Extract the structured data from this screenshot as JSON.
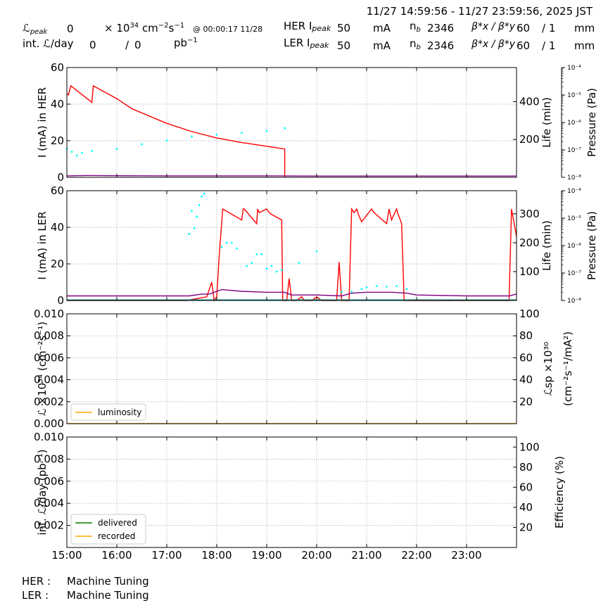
{
  "header": {
    "time_range": "11/27 14:59:56 - 11/27 23:59:56, 2025 JST",
    "lpeak_label": "ℒ",
    "lpeak_sub": "peak",
    "lpeak_value": "0",
    "lpeak_unit_pre": "× 10",
    "lpeak_unit_exp": "34",
    "lpeak_unit_rest": " cm",
    "lpeak_unit_exp2": "−2",
    "lpeak_unit_s": "s",
    "lpeak_unit_exp3": "−1",
    "lpeak_time": "@ 00:00:17 11/28",
    "intl_label": "int. ℒ/day",
    "intl_value": "0",
    "intl_sep": "/",
    "intl_value2": "0",
    "intl_unit": "pb",
    "intl_unit_exp": "−1",
    "her_label": "HER I",
    "her_sub": "peak",
    "her_value": "50",
    "ler_label": "LER I",
    "ler_sub": "peak",
    "ler_value": "50",
    "ma_unit": "mA",
    "nb_label": "n",
    "nb_sub": "b",
    "her_nb": "2346",
    "ler_nb": "2346",
    "beta_label": "β*x / β*y",
    "her_bx": "60",
    "her_by": "/ 1",
    "ler_bx": "60",
    "ler_by": "/ 1",
    "beta_unit": "mm"
  },
  "chart_data": [
    {
      "type": "line",
      "name": "her-panel",
      "ylabel": "I (mA) in HER",
      "ylim": [
        0,
        60
      ],
      "yticks": [
        "0",
        "20",
        "40",
        "60"
      ],
      "right_label": "Life (min)",
      "right_ticks": [
        "200",
        "400"
      ],
      "right_lim": [
        0,
        580
      ],
      "pressure_label": "Pressure (Pa)",
      "pressure_ticks": [
        "10⁻⁴",
        "10⁻⁵",
        "10⁻⁶",
        "10⁻⁷",
        "10⁻⁸"
      ],
      "grid": true,
      "series": [
        {
          "color": "#ff0000",
          "axis": "left",
          "x": [
            15.0,
            15.03,
            15.08,
            15.5,
            15.53,
            16.0,
            16.3,
            17.0,
            17.5,
            18.0,
            18.5,
            19.0,
            19.36,
            19.36
          ],
          "y": [
            46,
            45,
            50,
            41,
            50,
            43,
            37.5,
            29.5,
            25,
            21.5,
            19,
            17,
            15.5,
            0
          ]
        },
        {
          "color": "#800080",
          "axis": "left",
          "x": [
            15.0,
            15.4,
            16.0,
            17.0,
            18.0,
            19.0,
            20.0,
            21.0,
            22.0,
            23.0,
            24.0
          ],
          "y": [
            0.8,
            1.0,
            0.9,
            0.8,
            0.8,
            0.8,
            0.7,
            0.7,
            0.7,
            0.7,
            0.7
          ]
        },
        {
          "color": "#00ffff",
          "axis": "right",
          "style": "scatter",
          "x": [
            15.0,
            15.1,
            15.2,
            15.3,
            15.5,
            16.0,
            16.5,
            17.0,
            17.5,
            18.0,
            18.5,
            19.0,
            19.36
          ],
          "y": [
            150,
            135,
            115,
            130,
            140,
            150,
            175,
            195,
            215,
            225,
            235,
            245,
            260
          ]
        }
      ]
    },
    {
      "type": "line",
      "name": "ler-panel",
      "ylabel": "I (mA) in LER",
      "ylim": [
        0,
        60
      ],
      "yticks": [
        "0",
        "20",
        "40",
        "60"
      ],
      "right_label": "Life (min)",
      "right_ticks": [
        "100",
        "200",
        "300"
      ],
      "right_lim": [
        0,
        380
      ],
      "pressure_label": "Pressure (Pa)",
      "pressure_ticks": [
        "10⁻⁴",
        "10⁻⁵",
        "10⁻⁶",
        "10⁻⁷",
        "10⁻⁸"
      ],
      "grid": true,
      "series": [
        {
          "color": "#ff0000",
          "axis": "left",
          "x": [
            15.0,
            17.4,
            17.8,
            17.9,
            17.95,
            18.0,
            18.05,
            18.12,
            18.5,
            18.53,
            18.55,
            18.8,
            18.82,
            18.85,
            19.0,
            19.05,
            19.1,
            19.3,
            19.32,
            19.4,
            19.45,
            19.5,
            19.6,
            19.7,
            19.75,
            19.9,
            20.0,
            20.1,
            20.4,
            20.45,
            20.5,
            20.65,
            20.7,
            20.75,
            20.8,
            20.85,
            20.9,
            21.1,
            21.15,
            21.4,
            21.45,
            21.5,
            21.6,
            21.62,
            21.7,
            21.75,
            21.8,
            21.85,
            22.0,
            23.85,
            23.9,
            24.0
          ],
          "y": [
            0,
            0,
            2,
            10,
            0,
            2,
            25,
            50,
            44,
            50,
            50,
            42,
            50,
            48,
            50,
            48,
            47,
            44,
            0,
            0,
            12,
            0,
            0,
            2,
            0,
            0,
            2,
            0,
            0,
            21,
            0,
            0,
            50,
            48,
            50,
            46,
            43,
            50,
            48,
            42,
            50,
            44,
            50,
            48,
            42,
            0,
            0,
            0,
            0,
            0,
            50,
            35
          ]
        },
        {
          "color": "#800080",
          "axis": "left",
          "x": [
            15.0,
            17.45,
            17.7,
            17.85,
            18.1,
            18.5,
            19.0,
            19.35,
            19.5,
            20.0,
            20.5,
            20.7,
            21.0,
            21.5,
            21.8,
            22.0,
            23.0,
            23.85,
            24.0
          ],
          "y": [
            2.5,
            2.5,
            3.5,
            3.5,
            6,
            5,
            4.5,
            4.5,
            3,
            3,
            2.5,
            4,
            4.5,
            4.5,
            4,
            3,
            2.5,
            2.5,
            3.5
          ]
        },
        {
          "color": "#00ffff",
          "axis": "right",
          "style": "scatter",
          "x": [
            17.45,
            17.5,
            17.55,
            17.6,
            17.65,
            17.7,
            17.75,
            18.1,
            18.2,
            18.3,
            18.4,
            18.6,
            18.7,
            18.8,
            18.9,
            19.0,
            19.1,
            19.2,
            19.3,
            19.65,
            20.0,
            20.5,
            20.7,
            20.9,
            21.0,
            21.2,
            21.4,
            21.6,
            21.8
          ],
          "y": [
            230,
            310,
            250,
            290,
            330,
            360,
            370,
            185,
            200,
            200,
            180,
            120,
            130,
            160,
            160,
            110,
            120,
            100,
            105,
            130,
            170,
            30,
            30,
            40,
            45,
            50,
            48,
            50,
            40
          ]
        },
        {
          "color": "#008080",
          "axis": "left",
          "x": [
            15.0,
            24.0
          ],
          "y": [
            0.3,
            0.3
          ]
        }
      ]
    },
    {
      "type": "line",
      "name": "lumi-panel",
      "ylabel": "ℒ ×10³⁴ (cm⁻²s⁻¹)",
      "ylim": [
        0,
        0.01
      ],
      "yticks": [
        "0.000",
        "0.002",
        "0.004",
        "0.006",
        "0.008",
        "0.010"
      ],
      "right_label": "ℒsp ×10³⁰",
      "right_label2": "(cm⁻²s⁻¹/mA²)",
      "right_ticks": [
        "20",
        "40",
        "60",
        "80",
        "100"
      ],
      "right_lim": [
        0,
        100
      ],
      "grid": true,
      "legend": [
        "luminosity"
      ],
      "legend_position": "lower-left",
      "series": [
        {
          "name": "luminosity",
          "color": "#ffa500",
          "x": [
            15.0,
            24.0
          ],
          "y": [
            0,
            0
          ]
        }
      ]
    },
    {
      "type": "line",
      "name": "intlumi-panel",
      "ylabel": "int. ℒ/day (pb⁻¹)",
      "ylim": [
        0,
        0.01
      ],
      "yticks": [
        "0.002",
        "0.004",
        "0.006",
        "0.008",
        "0.010"
      ],
      "right_label": "Efficiency (%)",
      "right_ticks": [
        "20",
        "40",
        "60",
        "80",
        "100"
      ],
      "right_lim": [
        0,
        110
      ],
      "grid": true,
      "legend": [
        "delivered",
        "recorded"
      ],
      "legend_position": "lower-left",
      "series": [
        {
          "name": "delivered",
          "color": "#008000",
          "x": [],
          "y": []
        },
        {
          "name": "recorded",
          "color": "#ffa500",
          "x": [],
          "y": []
        }
      ],
      "xticks": [
        "15:00",
        "16:00",
        "17:00",
        "18:00",
        "19:00",
        "20:00",
        "21:00",
        "22:00",
        "23:00"
      ],
      "xlim": [
        15.0,
        24.0
      ]
    }
  ],
  "footer": {
    "her_label": "HER :",
    "her_status": "Machine Tuning",
    "ler_label": "LER :",
    "ler_status": "Machine Tuning"
  }
}
